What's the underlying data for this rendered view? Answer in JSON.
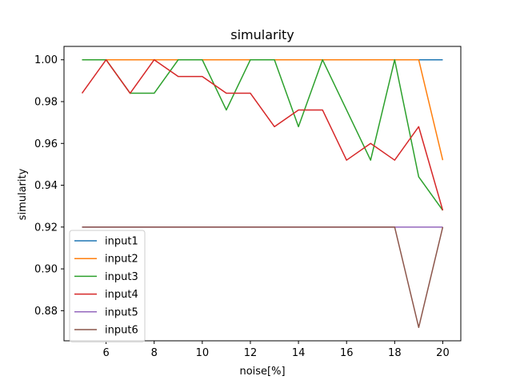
{
  "chart_data": {
    "type": "line",
    "title": "simularity",
    "xlabel": "noise[%]",
    "ylabel": "simularity",
    "xlim": [
      4.25,
      20.75
    ],
    "ylim": [
      0.8656,
      1.0064
    ],
    "xticks": [
      6,
      8,
      10,
      12,
      14,
      16,
      18,
      20
    ],
    "yticks": [
      0.88,
      0.9,
      0.92,
      0.94,
      0.96,
      0.98,
      1.0
    ],
    "ytick_labels": [
      "0.88",
      "0.90",
      "0.92",
      "0.94",
      "0.96",
      "0.98",
      "1.00"
    ],
    "grid": false,
    "legend_position": "lower-left",
    "x": [
      5,
      6,
      7,
      8,
      9,
      10,
      11,
      12,
      13,
      14,
      15,
      16,
      17,
      18,
      19,
      20
    ],
    "series": [
      {
        "name": "input1",
        "color": "#1f77b4",
        "values": [
          1.0,
          1.0,
          1.0,
          1.0,
          1.0,
          1.0,
          1.0,
          1.0,
          1.0,
          1.0,
          1.0,
          1.0,
          1.0,
          1.0,
          1.0,
          1.0
        ]
      },
      {
        "name": "input2",
        "color": "#ff7f0e",
        "values": [
          1.0,
          1.0,
          1.0,
          1.0,
          1.0,
          1.0,
          1.0,
          1.0,
          1.0,
          1.0,
          1.0,
          1.0,
          1.0,
          1.0,
          1.0,
          0.952
        ]
      },
      {
        "name": "input3",
        "color": "#2ca02c",
        "values": [
          1.0,
          1.0,
          0.984,
          0.984,
          1.0,
          1.0,
          0.976,
          1.0,
          1.0,
          0.968,
          1.0,
          0.976,
          0.952,
          1.0,
          0.944,
          0.928
        ]
      },
      {
        "name": "input4",
        "color": "#d62728",
        "values": [
          0.984,
          1.0,
          0.984,
          1.0,
          0.992,
          0.992,
          0.984,
          0.984,
          0.968,
          0.976,
          0.976,
          0.952,
          0.96,
          0.952,
          0.968,
          0.928
        ]
      },
      {
        "name": "input5",
        "color": "#9467bd",
        "values": [
          0.92,
          0.92,
          0.92,
          0.92,
          0.92,
          0.92,
          0.92,
          0.92,
          0.92,
          0.92,
          0.92,
          0.92,
          0.92,
          0.92,
          0.92,
          0.92
        ]
      },
      {
        "name": "input6",
        "color": "#8c564b",
        "values": [
          0.92,
          0.92,
          0.92,
          0.92,
          0.92,
          0.92,
          0.92,
          0.92,
          0.92,
          0.92,
          0.92,
          0.92,
          0.92,
          0.92,
          0.872,
          0.92
        ]
      }
    ]
  }
}
